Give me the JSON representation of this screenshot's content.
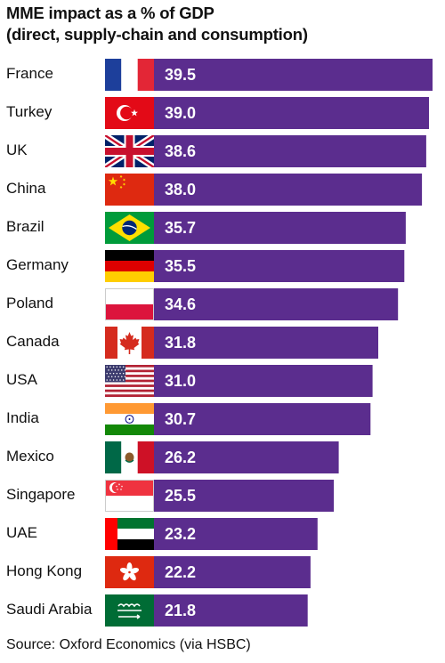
{
  "chart_data": {
    "type": "bar",
    "orientation": "horizontal",
    "title_lines": [
      "MME impact as a % of GDP",
      "(direct, supply-chain and consumption)"
    ],
    "categories": [
      "France",
      "Turkey",
      "UK",
      "China",
      "Brazil",
      "Germany",
      "Poland",
      "Canada",
      "USA",
      "India",
      "Mexico",
      "Singapore",
      "UAE",
      "Hong Kong",
      "Saudi Arabia"
    ],
    "values": [
      39.5,
      39.0,
      38.6,
      38.0,
      35.7,
      35.5,
      34.6,
      31.8,
      31.0,
      30.7,
      26.2,
      25.5,
      23.2,
      22.2,
      21.8
    ],
    "value_labels": [
      "39.5",
      "39.0",
      "38.6",
      "38.0",
      "35.7",
      "35.5",
      "34.6",
      "31.8",
      "31.0",
      "30.7",
      "26.2",
      "25.5",
      "23.2",
      "22.2",
      "21.8"
    ],
    "flags": [
      "france-flag-icon",
      "turkey-flag-icon",
      "uk-flag-icon",
      "china-flag-icon",
      "brazil-flag-icon",
      "germany-flag-icon",
      "poland-flag-icon",
      "canada-flag-icon",
      "usa-flag-icon",
      "india-flag-icon",
      "mexico-flag-icon",
      "singapore-flag-icon",
      "uae-flag-icon",
      "hong-kong-flag-icon",
      "saudi-arabia-flag-icon"
    ],
    "xlim": [
      0,
      39.5
    ],
    "bar_color": "#5b2d8e",
    "grid": false,
    "legend": "none"
  },
  "source": "Source: Oxford Economics (via HSBC)"
}
